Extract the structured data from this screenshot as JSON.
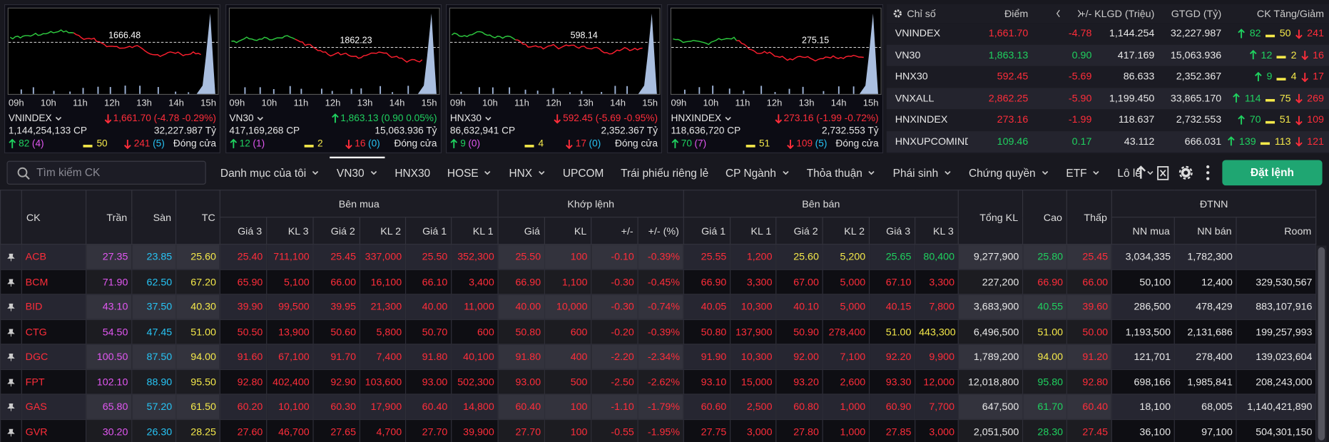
{
  "cards": [
    {
      "name": "VNINDEX",
      "reference": "1666.48",
      "change": "1,661.70 (-4.78 -0.29%)",
      "volume": "1,144,254,133 CP",
      "value": "32,227.987 Tỷ",
      "up": "82",
      "ceiling": "(4)",
      "flat": "50",
      "down": "241",
      "floor": "(5)",
      "status": "Đóng cửa"
    },
    {
      "name": "VN30",
      "reference": "1862.23",
      "change": "1,863.13 (0.90 0.05%)",
      "volume": "417,169,268 CP",
      "value": "15,063.936 Tỷ",
      "up": "12",
      "ceiling": "(1)",
      "flat": "2",
      "down": "16",
      "floor": "(0)",
      "status": "Đóng cửa"
    },
    {
      "name": "HNX30",
      "reference": "598.14",
      "change": "592.45 (-5.69 -0.95%)",
      "volume": "86,632,941 CP",
      "value": "2,352.367 Tỷ",
      "up": "9",
      "ceiling": "(0)",
      "flat": "4",
      "down": "17",
      "floor": "(0)",
      "status": "Đóng cửa"
    },
    {
      "name": "HNXINDEX",
      "reference": "275.15",
      "change": "273.16 (-1.99 -0.72%)",
      "volume": "118,636,720 CP",
      "value": "2,732.553 Tỷ",
      "up": "70",
      "ceiling": "(7)",
      "flat": "51",
      "down": "109",
      "floor": "(5)",
      "status": "Đóng cửa"
    }
  ],
  "times": [
    "09h",
    "10h",
    "11h",
    "12h",
    "13h",
    "14h",
    "15h"
  ],
  "index_table": {
    "headers": [
      "Chỉ số",
      "Điểm",
      "+/-",
      "KLGD (Triệu)",
      "GTGD (Tỷ)",
      "CK Tăng/Giảm"
    ],
    "rows": [
      {
        "name": "VNINDEX",
        "point": "1,661.70",
        "change": "-4.78",
        "volume": "1,144.254",
        "value": "32,227.987",
        "up": "82",
        "flat": "50",
        "down": "241"
      },
      {
        "name": "VN30",
        "point": "1,863.13",
        "change": "0.90",
        "volume": "417.169",
        "value": "15,063.936",
        "up": "12",
        "flat": "2",
        "down": "16"
      },
      {
        "name": "HNX30",
        "point": "592.45",
        "change": "-5.69",
        "volume": "86.633",
        "value": "2,352.367",
        "up": "9",
        "flat": "4",
        "down": "17"
      },
      {
        "name": "VNXALL",
        "point": "2,862.25",
        "change": "-5.90",
        "volume": "1,199.450",
        "value": "33,865.170",
        "up": "114",
        "flat": "75",
        "down": "269"
      },
      {
        "name": "HNXINDEX",
        "point": "273.16",
        "change": "-1.99",
        "volume": "118.637",
        "value": "2,732.553",
        "up": "70",
        "flat": "51",
        "down": "109"
      },
      {
        "name": "HNXUPCOMINDE",
        "point": "109.46",
        "change": "0.17",
        "volume": "43.112",
        "value": "666.031",
        "up": "139",
        "flat": "113",
        "down": "121"
      }
    ]
  },
  "toolbar": {
    "search_placeholder": "Tìm kiếm CK",
    "tabs": [
      {
        "label": "Danh mục của tôi",
        "dropdown": true
      },
      {
        "label": "VN30",
        "dropdown": true,
        "active": true
      },
      {
        "label": "HNX30",
        "dropdown": false
      },
      {
        "label": "HOSE",
        "dropdown": true
      },
      {
        "label": "HNX",
        "dropdown": true
      },
      {
        "label": "UPCOM",
        "dropdown": false
      },
      {
        "label": "Trái phiếu riêng lẻ",
        "dropdown": false
      },
      {
        "label": "CP Ngành",
        "dropdown": true
      },
      {
        "label": "Thỏa thuận",
        "dropdown": true
      },
      {
        "label": "Phái sinh",
        "dropdown": true
      },
      {
        "label": "Chứng quyền",
        "dropdown": true
      },
      {
        "label": "ETF",
        "dropdown": true
      },
      {
        "label": "Lô lẻ",
        "dropdown": true
      }
    ],
    "order_button": "Đặt lệnh"
  },
  "board": {
    "header_top": [
      {
        "label": "CK"
      },
      {
        "label": "Trần"
      },
      {
        "label": "Sàn"
      },
      {
        "label": "TC"
      },
      {
        "label": "Bên mua",
        "columns": 6
      },
      {
        "label": "Khớp lệnh",
        "columns": 4
      },
      {
        "label": "Bên bán",
        "columns": 6
      },
      {
        "label": "Tổng KL"
      },
      {
        "label": "Cao"
      },
      {
        "label": "Thấp"
      },
      {
        "label": "ĐTNN",
        "columns": 3
      }
    ],
    "header_sub": [
      "Giá 3",
      "KL 3",
      "Giá 2",
      "KL 2",
      "Giá 1",
      "KL 1",
      "Giá",
      "KL",
      "+/-",
      "+/- (%)",
      "Giá 1",
      "KL 1",
      "Giá 2",
      "KL 2",
      "Giá 3",
      "KL 3",
      "NN mua",
      "NN bán",
      "Room"
    ],
    "rows": [
      [
        "ACB",
        "27.35",
        "23.85",
        "25.60",
        "25.40",
        "711,100",
        "25.45",
        "337,000",
        "25.50",
        "352,300",
        "25.50",
        "100",
        "-0.10",
        "-0.39%",
        "25.55",
        "1,200",
        "25.60",
        "5,200",
        "25.65",
        "80,400",
        "9,277,900",
        "25.80",
        "25.45",
        "3,034,335",
        "1,782,300",
        null
      ],
      [
        "BCM",
        "71.90",
        "62.50",
        "67.20",
        "65.90",
        "5,100",
        "66.00",
        "16,100",
        "66.10",
        "3,400",
        "66.90",
        "1,100",
        "-0.30",
        "-0.45%",
        "66.90",
        "3,300",
        "67.00",
        "5,000",
        "67.10",
        "3,300",
        "227,200",
        "66.90",
        "66.00",
        "50,100",
        "12,400",
        "329,530,567"
      ],
      [
        "BID",
        "43.10",
        "37.50",
        "40.30",
        "39.90",
        "99,500",
        "39.95",
        "21,300",
        "40.00",
        "11,000",
        "40.00",
        "10,000",
        "-0.30",
        "-0.74%",
        "40.05",
        "10,300",
        "40.10",
        "5,000",
        "40.15",
        "7,800",
        "3,683,900",
        "40.55",
        "39.60",
        "286,500",
        "478,429",
        "883,107,916"
      ],
      [
        "CTG",
        "54.50",
        "47.45",
        "51.00",
        "50.50",
        "13,900",
        "50.60",
        "5,800",
        "50.70",
        "600",
        "50.80",
        "600",
        "-0.20",
        "-0.39%",
        "50.80",
        "137,900",
        "50.90",
        "278,400",
        "51.00",
        "443,300",
        "6,496,500",
        "51.00",
        "50.00",
        "1,193,500",
        "2,131,686",
        "199,257,993"
      ],
      [
        "DGC",
        "100.50",
        "87.50",
        "94.00",
        "91.60",
        "67,100",
        "91.70",
        "7,400",
        "91.80",
        "40,100",
        "91.80",
        "400",
        "-2.20",
        "-2.34%",
        "91.90",
        "10,300",
        "92.00",
        "7,100",
        "92.20",
        "9,900",
        "1,789,200",
        "94.00",
        "91.20",
        "121,701",
        "278,400",
        "139,023,604"
      ],
      [
        "FPT",
        "102.10",
        "88.90",
        "95.50",
        "92.80",
        "402,400",
        "92.90",
        "103,600",
        "93.00",
        "502,300",
        "93.00",
        "500",
        "-2.50",
        "-2.62%",
        "93.10",
        "15,000",
        "93.20",
        "2,600",
        "93.30",
        "12,000",
        "12,018,800",
        "95.80",
        "92.80",
        "698,166",
        "1,985,841",
        "208,243,000"
      ],
      [
        "GAS",
        "65.80",
        "57.20",
        "61.50",
        "60.20",
        "10,100",
        "60.30",
        "17,900",
        "60.40",
        "14,800",
        "60.40",
        "100",
        "-1.10",
        "-1.79%",
        "60.60",
        "2,500",
        "60.80",
        "1,000",
        "60.90",
        "7,700",
        "647,500",
        "61.70",
        "60.40",
        "18,100",
        "68,005",
        "1,140,421,890"
      ],
      [
        "GVR",
        "30.20",
        "26.30",
        "28.25",
        "27.60",
        "46,700",
        "27.65",
        "4,700",
        "27.70",
        "39,900",
        "27.70",
        "100",
        "-0.55",
        "-1.95%",
        "27.75",
        "3,000",
        "27.80",
        "1,000",
        "27.85",
        "3,000",
        "2,051,500",
        "28.30",
        "27.45",
        "36,100",
        "97,100",
        "504,301,150"
      ]
    ]
  }
}
